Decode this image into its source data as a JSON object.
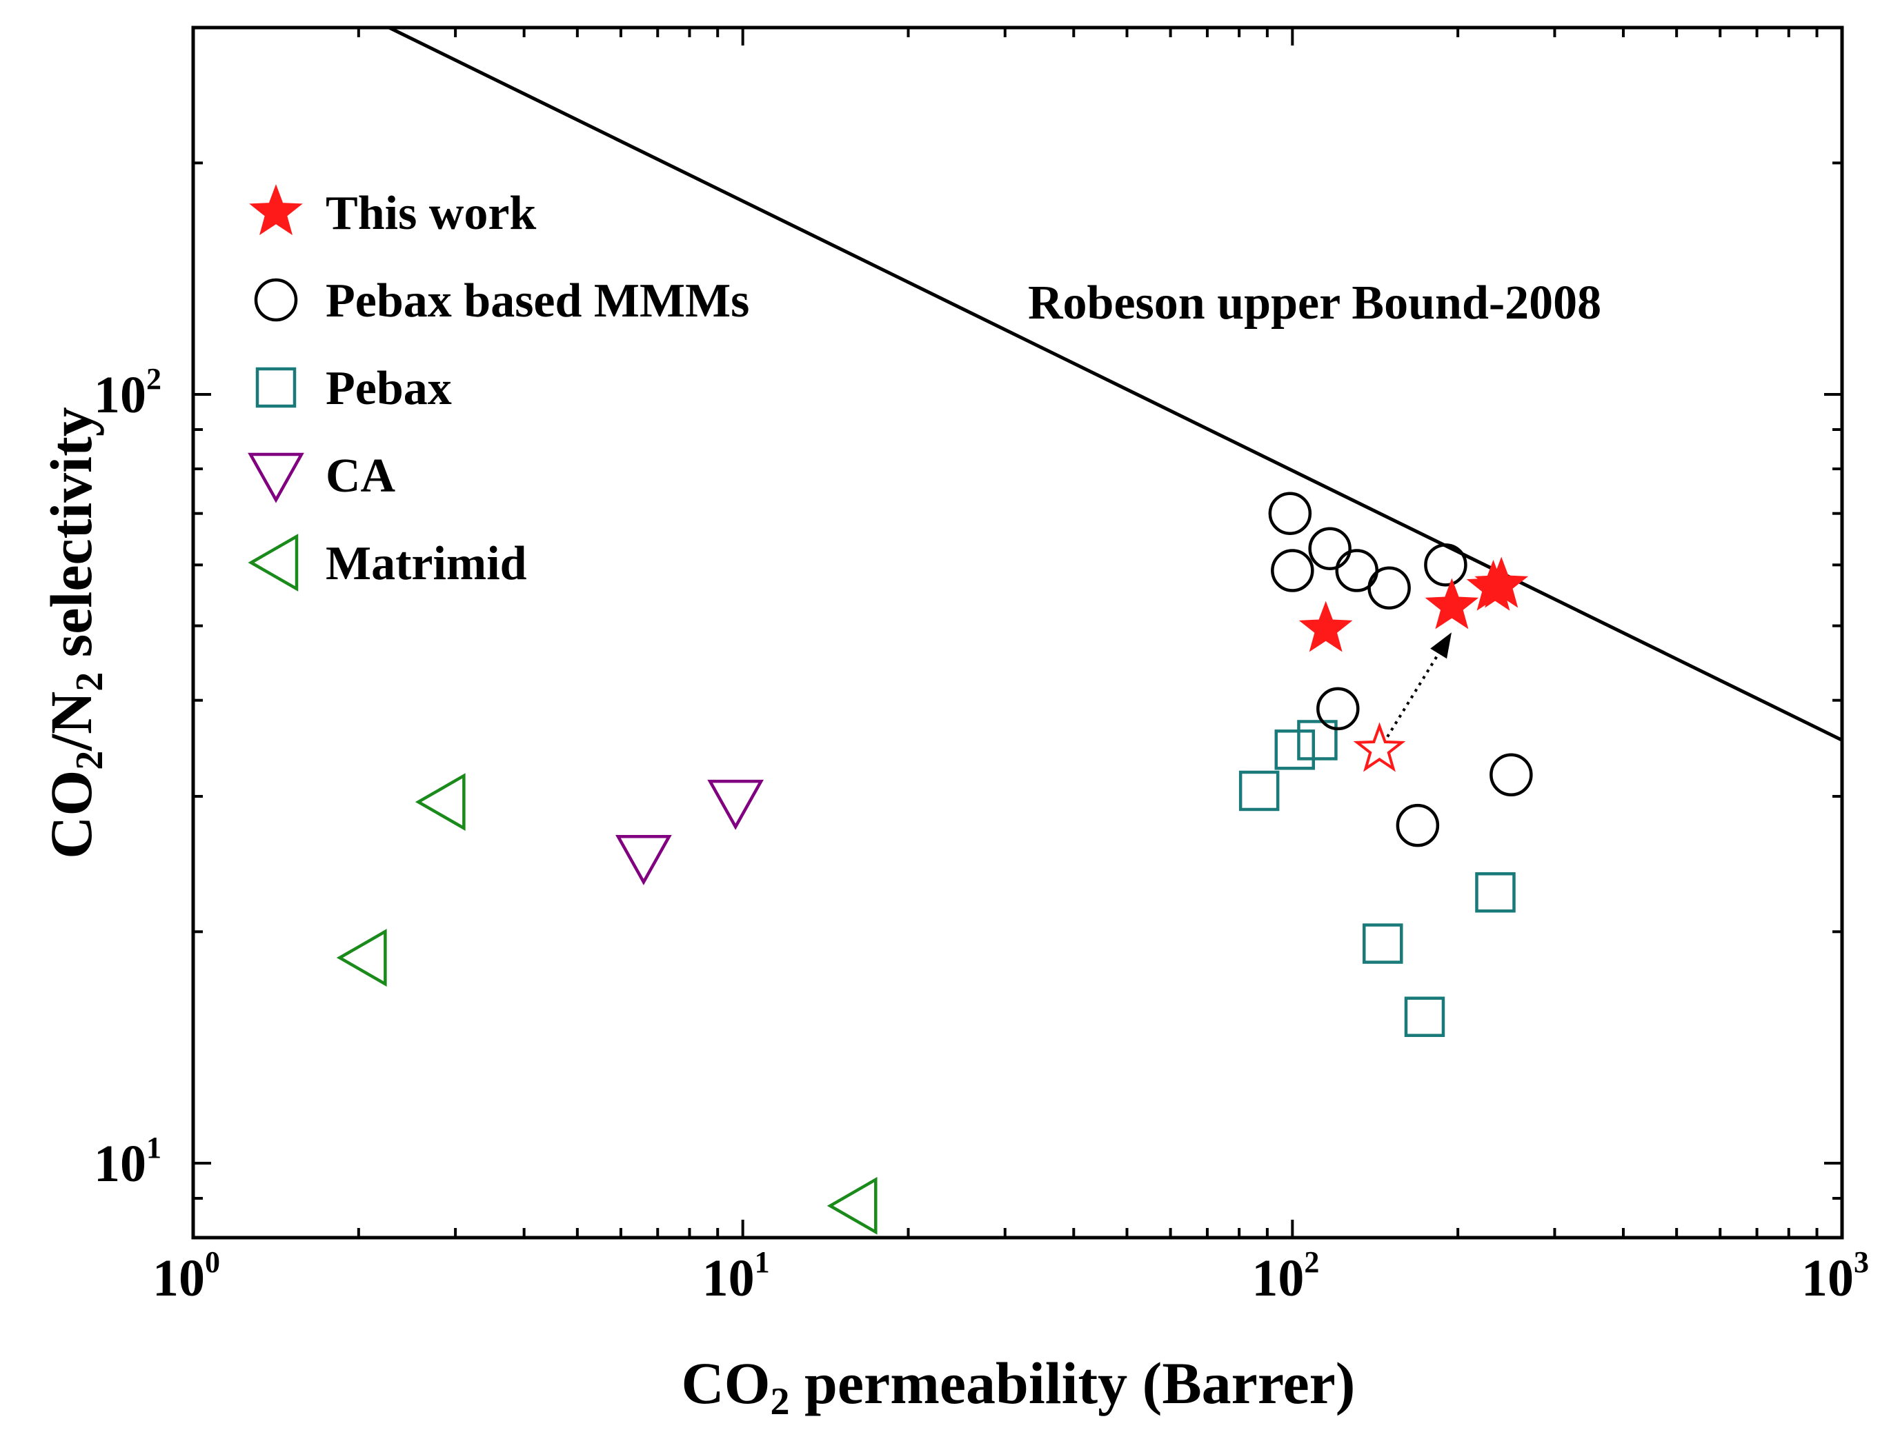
{
  "chart_data": {
    "type": "scatter",
    "title": "",
    "xlabel": {
      "prefix": "CO",
      "sub": "2",
      "suffix": " permeability (Barrer)"
    },
    "ylabel": {
      "p1": "CO",
      "s1": "2",
      "p2": "/N",
      "s2": "2",
      "p3": " selectivity"
    },
    "xscale": "log",
    "yscale": "log",
    "xlim": [
      1,
      1000
    ],
    "ylim": [
      8,
      300
    ],
    "x_ticks": [
      {
        "base": "10",
        "exp": "0"
      },
      {
        "base": "10",
        "exp": "1"
      },
      {
        "base": "10",
        "exp": "2"
      },
      {
        "base": "10",
        "exp": "3"
      }
    ],
    "y_ticks": [
      {
        "base": "10",
        "exp": "1"
      },
      {
        "base": "10",
        "exp": "2"
      }
    ],
    "legend_position": "top-left",
    "series": [
      {
        "name": "This work",
        "marker": "star-filled",
        "color": "#ff1a1a",
        "points": [
          {
            "x": 115,
            "y": 49.5
          },
          {
            "x": 195,
            "y": 53
          },
          {
            "x": 232,
            "y": 56
          },
          {
            "x": 240,
            "y": 56.5
          }
        ]
      },
      {
        "name": "Pebax based MMMs",
        "marker": "circle",
        "color": "#000000",
        "points": [
          {
            "x": 99,
            "y": 70
          },
          {
            "x": 100,
            "y": 59
          },
          {
            "x": 117,
            "y": 63
          },
          {
            "x": 131,
            "y": 59
          },
          {
            "x": 150,
            "y": 56
          },
          {
            "x": 190,
            "y": 60
          },
          {
            "x": 121,
            "y": 39
          },
          {
            "x": 169,
            "y": 27.5
          },
          {
            "x": 250,
            "y": 32
          }
        ]
      },
      {
        "name": "Pebax",
        "marker": "square",
        "color": "#1a7a7a",
        "points": [
          {
            "x": 87,
            "y": 30.5
          },
          {
            "x": 101,
            "y": 34.5
          },
          {
            "x": 111,
            "y": 35.5
          },
          {
            "x": 234,
            "y": 22.5
          },
          {
            "x": 146,
            "y": 19.3
          },
          {
            "x": 174,
            "y": 15.5
          }
        ]
      },
      {
        "name": "CA",
        "marker": "triangle-down",
        "color": "#800080",
        "points": [
          {
            "x": 6.6,
            "y": 25
          },
          {
            "x": 9.7,
            "y": 29.5
          }
        ]
      },
      {
        "name": "Matrimid",
        "marker": "triangle-left",
        "color": "#1a8a1a",
        "points": [
          {
            "x": 2.85,
            "y": 29.5
          },
          {
            "x": 2.05,
            "y": 18.5
          },
          {
            "x": 16,
            "y": 8.8
          }
        ]
      }
    ],
    "extra_marks": [
      {
        "name": "open-star-before",
        "marker": "star-open",
        "color": "#ff1a1a",
        "x": 144,
        "y": 34.5
      }
    ],
    "arrow": {
      "from": {
        "x": 144,
        "y": 34.5
      },
      "to": {
        "x": 193,
        "y": 48.5
      },
      "style": "dotted"
    },
    "upper_bound": {
      "label": "Robeson upper Bound-2008",
      "x1": 1,
      "y1": 400,
      "x2": 1000,
      "y2": 35.5
    }
  }
}
